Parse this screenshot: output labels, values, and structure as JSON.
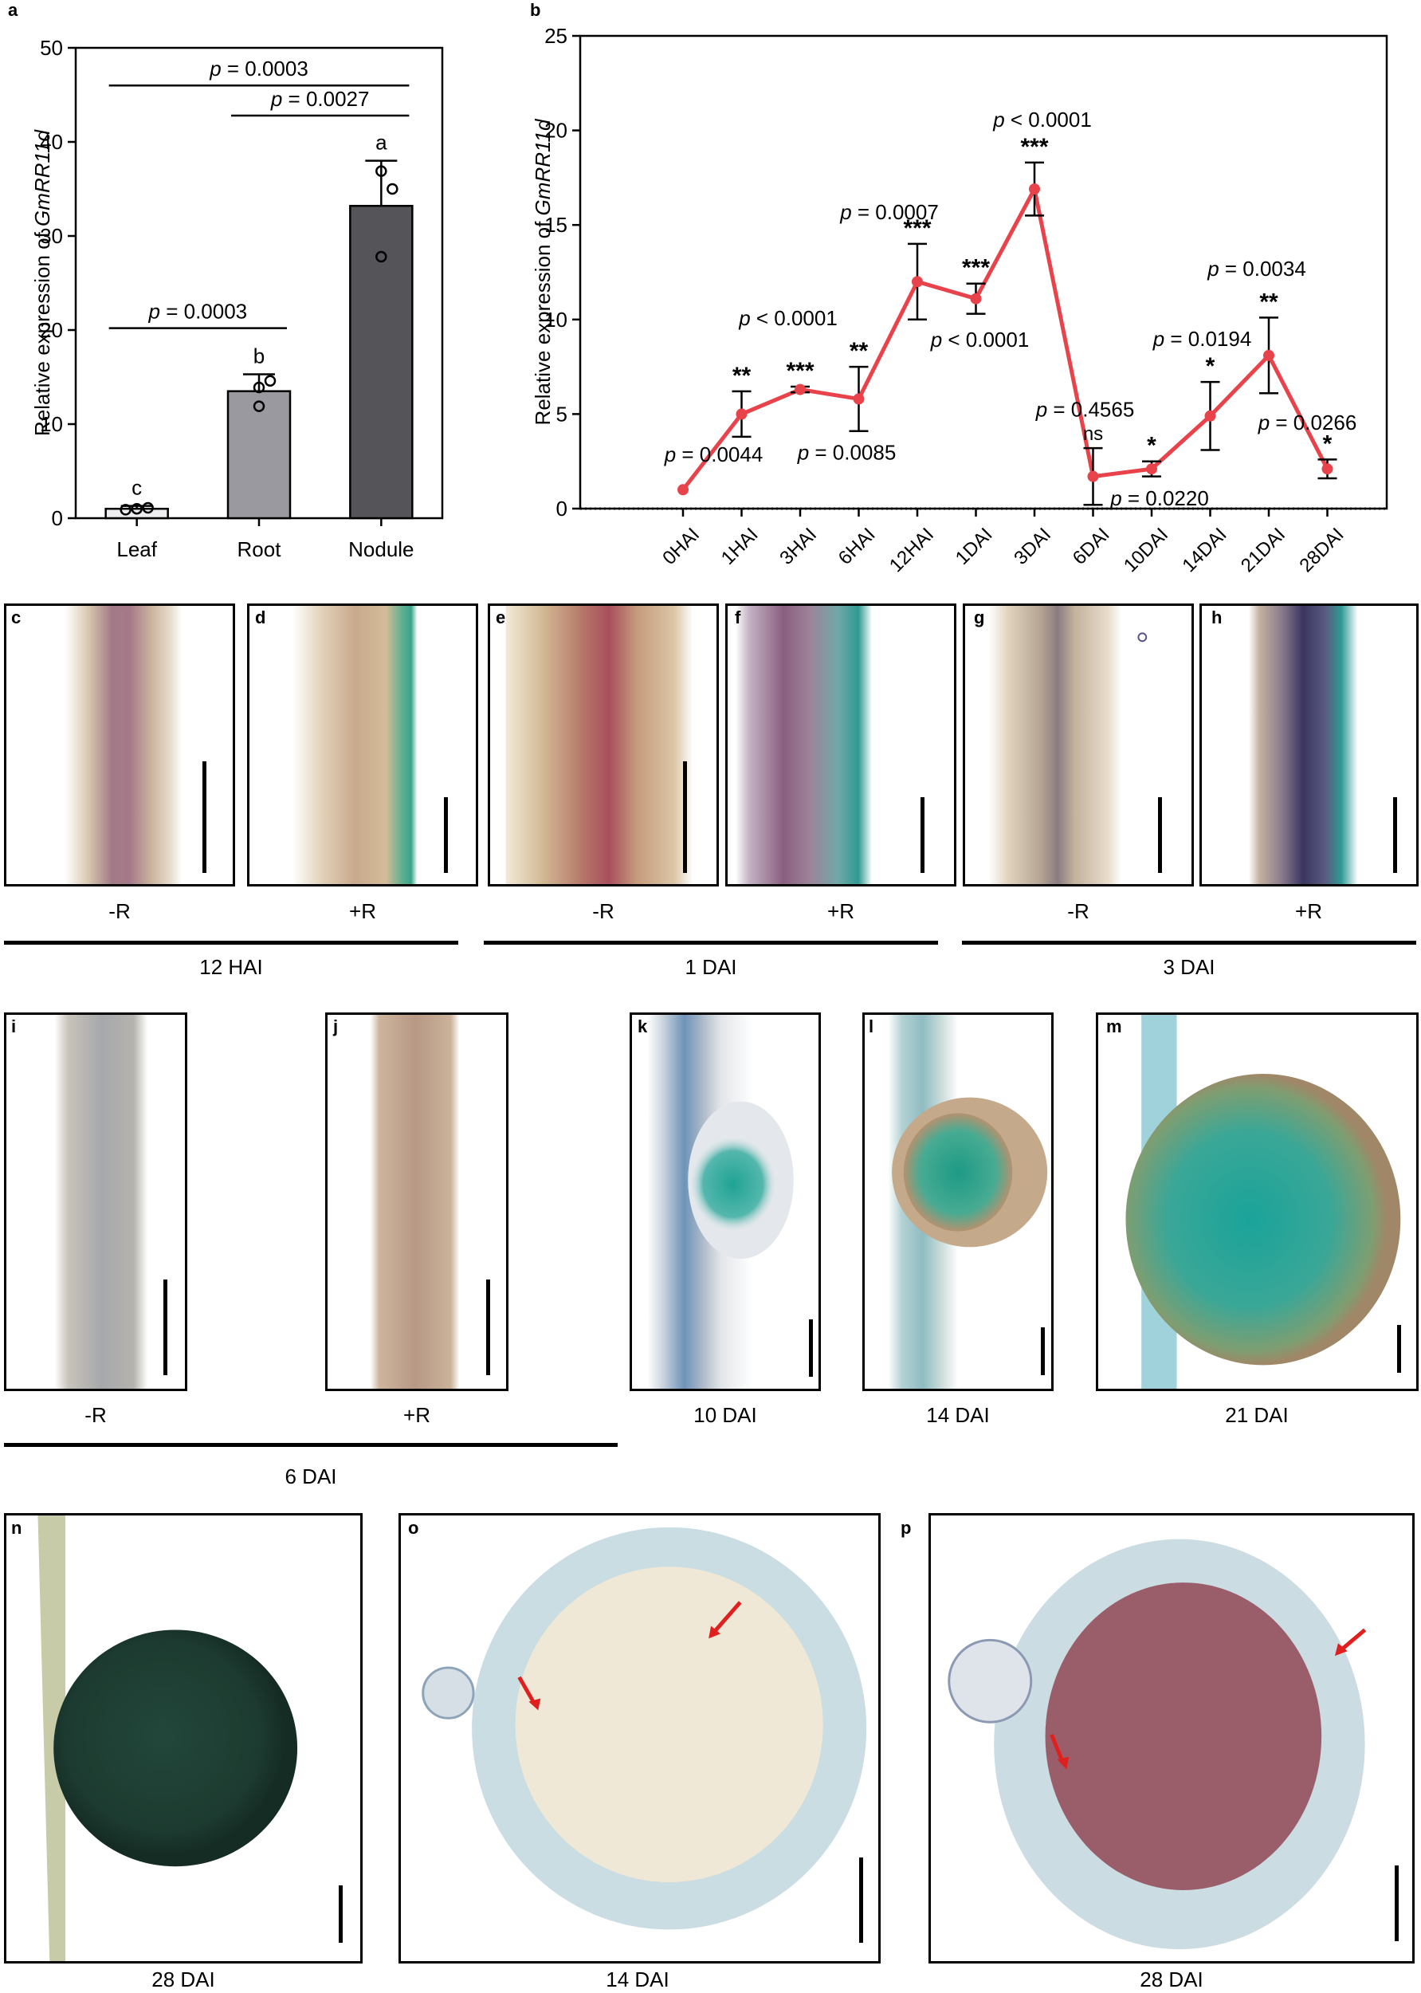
{
  "panel_labels": [
    "a",
    "b",
    "c",
    "d",
    "e",
    "f",
    "g",
    "h",
    "i",
    "j",
    "k",
    "l",
    "m",
    "n",
    "o",
    "p"
  ],
  "chart_data": [
    {
      "type": "bar",
      "panel": "a",
      "ylabel_prefix": "Relative expression of ",
      "ylabel_gene": "GmRR11d",
      "categories": [
        "Leaf",
        "Root",
        "Nodule"
      ],
      "values": [
        1.0,
        13.5,
        33.2
      ],
      "errors": [
        0.3,
        1.8,
        4.8
      ],
      "points": [
        [
          0.9,
          1.0,
          1.1
        ],
        [
          11.9,
          14.6,
          13.9
        ],
        [
          27.8,
          35.0,
          36.9
        ]
      ],
      "letters": [
        "c",
        "b",
        "a"
      ],
      "colors": [
        "#eeeef0",
        "#9a999f",
        "#555458"
      ],
      "ylim": [
        0,
        50
      ],
      "yticks": [
        0,
        10,
        20,
        30,
        40,
        50
      ],
      "comparisons": [
        {
          "from": "Leaf",
          "to": "Root",
          "label": "p = 0.0003"
        },
        {
          "from": "Root",
          "to": "Nodule",
          "label": "p = 0.0027"
        },
        {
          "from": "Leaf",
          "to": "Nodule",
          "label": "p = 0.0003"
        }
      ]
    },
    {
      "type": "line",
      "panel": "b",
      "ylabel_prefix": "Relative expression of ",
      "ylabel_gene": "GmRR11d",
      "categories": [
        "0HAI",
        "1HAI",
        "3HAI",
        "6HAI",
        "12HAI",
        "1DAI",
        "3DAI",
        "6DAI",
        "10DAI",
        "14DAI",
        "21DAI",
        "28DAI"
      ],
      "values": [
        1.0,
        5.0,
        6.3,
        5.8,
        12.0,
        11.1,
        16.9,
        1.7,
        2.1,
        4.9,
        8.1,
        2.1
      ],
      "errors": [
        0.0,
        1.2,
        0.15,
        1.7,
        2.0,
        0.8,
        1.4,
        1.5,
        0.4,
        1.8,
        2.0,
        0.5
      ],
      "stars": [
        "",
        "**",
        "***",
        "**",
        "***",
        "***",
        "***",
        "ns",
        "*",
        "*",
        "**",
        "*"
      ],
      "pvalues": [
        "",
        "p = 0.0044",
        "p < 0.0001",
        "p = 0.0085",
        "p = 0.0007",
        "p < 0.0001",
        "p < 0.0001",
        "p = 0.4565",
        "p = 0.0220",
        "p = 0.0194",
        "p = 0.0034",
        "p = 0.0266"
      ],
      "color": "#e8434a",
      "ylim": [
        0,
        25
      ],
      "yticks": [
        0,
        5,
        10,
        15,
        20,
        25
      ]
    }
  ],
  "captions": {
    "c": "-R",
    "d": "+R",
    "e": "-R",
    "f": "+R",
    "g": "-R",
    "h": "+R",
    "i": "-R",
    "j": "+R",
    "k": "10 DAI",
    "l": "14 DAI",
    "m": "21 DAI",
    "n": "28 DAI",
    "o": "14 DAI",
    "p": "28 DAI"
  },
  "group_labels": {
    "g12hai": "12 HAI",
    "g1dai": "1 DAI",
    "g3dai": "3 DAI",
    "g6dai": "6 DAI"
  },
  "stain_colors": {
    "gus_blue": "#3fa9a3",
    "purple_red": "#9c5470",
    "root_tan": "#c9b59a",
    "nodule_dark": "#1e3a2e"
  }
}
